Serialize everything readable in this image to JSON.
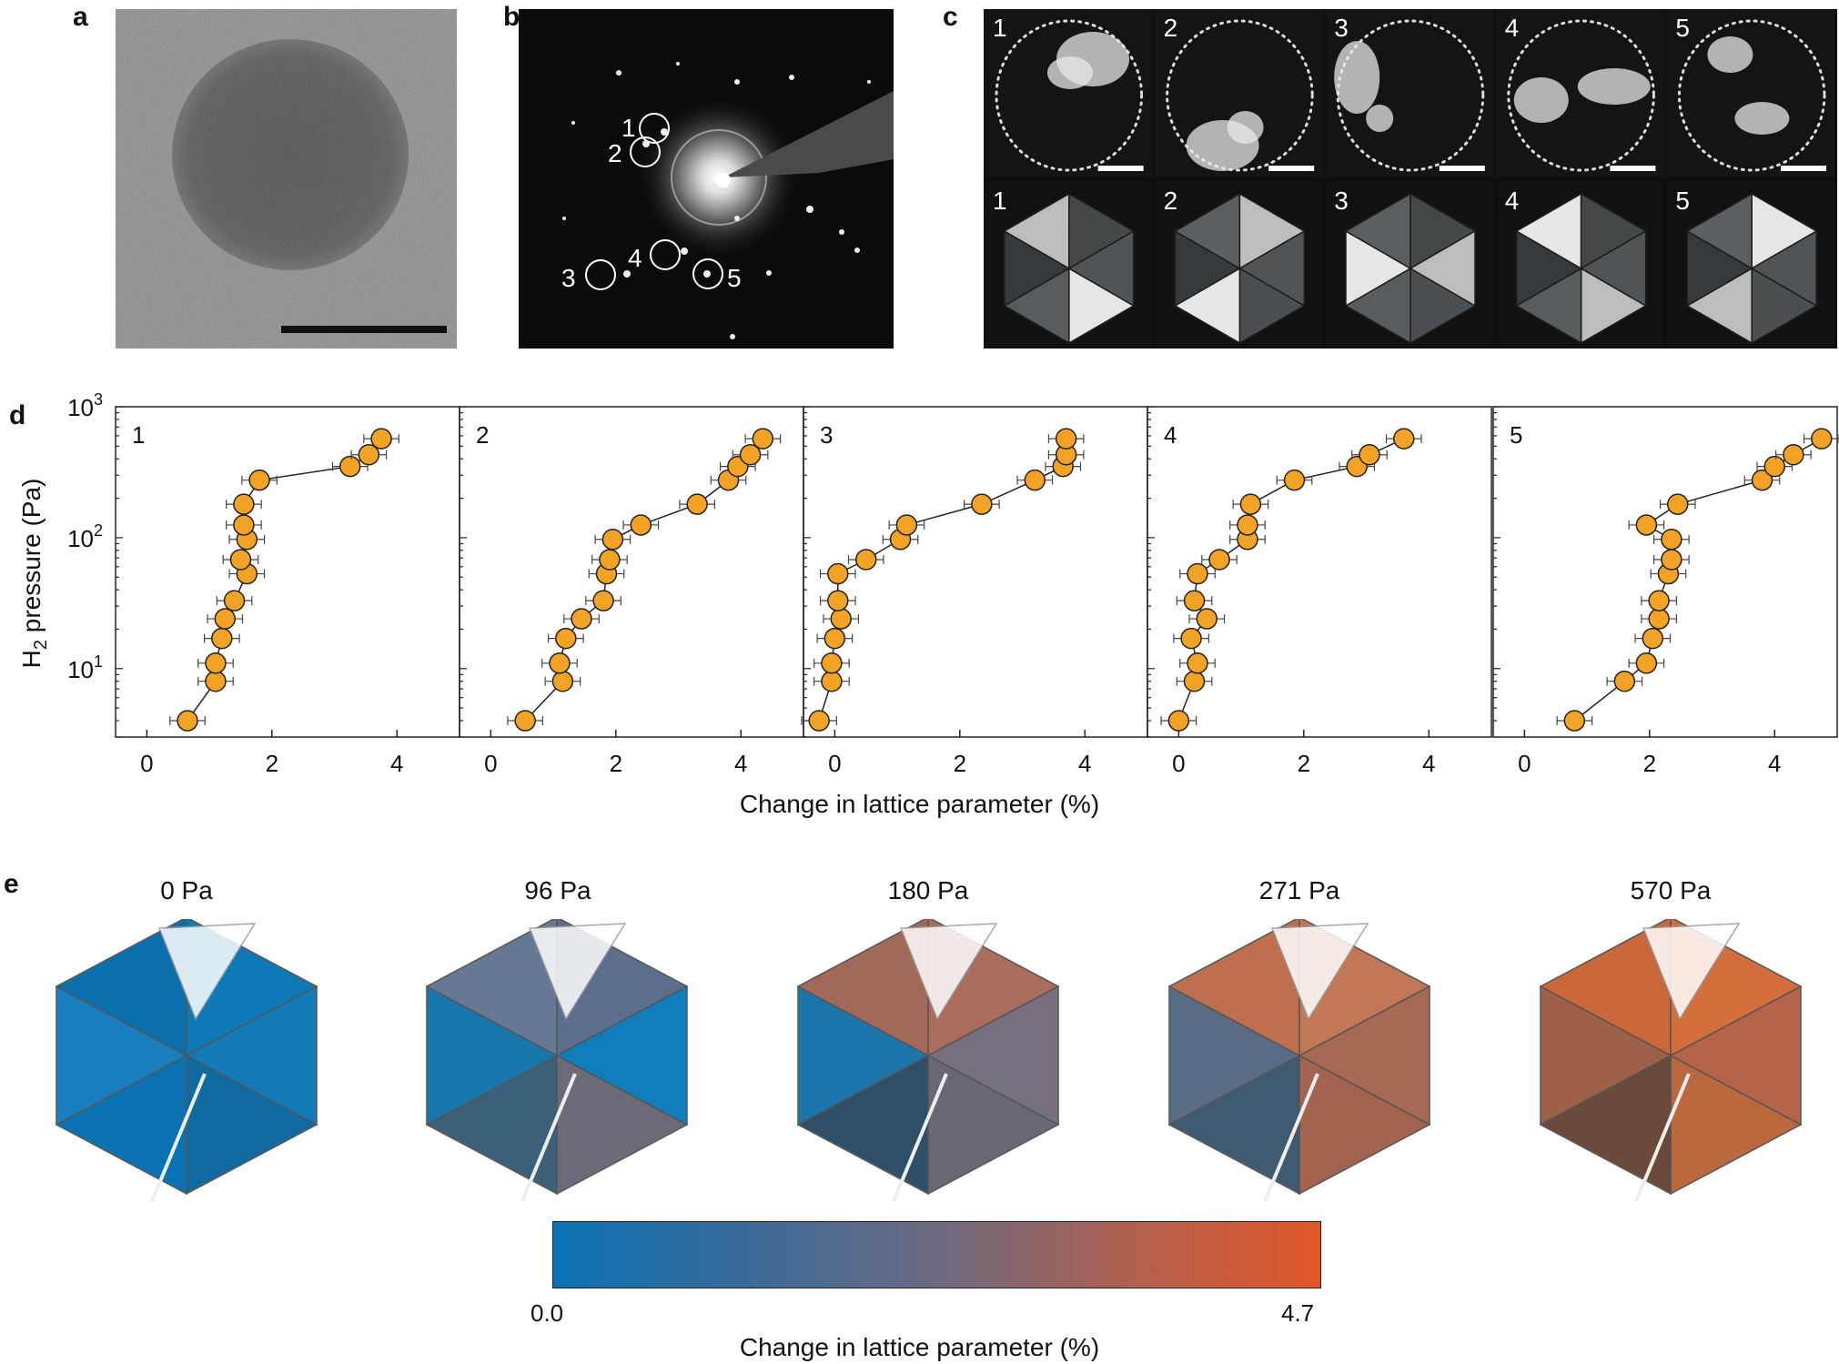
{
  "panels": {
    "a": "a",
    "b": "b",
    "c": "c",
    "d": "d",
    "e": "e"
  },
  "diffraction_spots": [
    "1",
    "2",
    "3",
    "4",
    "5"
  ],
  "dark_field_labels": [
    "1",
    "2",
    "3",
    "4",
    "5"
  ],
  "model_labels": [
    "1",
    "2",
    "3",
    "4",
    "5"
  ],
  "chart_data": [
    {
      "type": "scatter",
      "panel_label": "1",
      "xlabel": "Change in lattice parameter (%)",
      "ylabel": "H2 pressure (Pa)",
      "xlim": [
        -0.5,
        5
      ],
      "ylim": [
        3,
        1000
      ],
      "y_scale": "log",
      "x_ticks": [
        "0",
        "2",
        "4"
      ],
      "y_ticks": [
        "10¹",
        "10²",
        "10³"
      ],
      "points": [
        [
          0.65,
          4
        ],
        [
          1.1,
          8
        ],
        [
          1.1,
          11
        ],
        [
          1.2,
          17
        ],
        [
          1.25,
          24
        ],
        [
          1.4,
          33
        ],
        [
          1.6,
          53
        ],
        [
          1.5,
          68
        ],
        [
          1.6,
          97
        ],
        [
          1.55,
          125
        ],
        [
          1.55,
          180
        ],
        [
          1.8,
          275
        ],
        [
          3.25,
          350
        ],
        [
          3.55,
          430
        ],
        [
          3.75,
          570
        ]
      ]
    },
    {
      "type": "scatter",
      "panel_label": "2",
      "xlabel": "Change in lattice parameter (%)",
      "ylabel": "H2 pressure (Pa)",
      "xlim": [
        -0.5,
        5
      ],
      "ylim": [
        3,
        1000
      ],
      "y_scale": "log",
      "x_ticks": [
        "0",
        "2",
        "4"
      ],
      "points": [
        [
          0.55,
          4
        ],
        [
          1.15,
          8
        ],
        [
          1.1,
          11
        ],
        [
          1.2,
          17
        ],
        [
          1.45,
          24
        ],
        [
          1.8,
          33
        ],
        [
          1.85,
          53
        ],
        [
          1.9,
          68
        ],
        [
          1.95,
          97
        ],
        [
          2.4,
          125
        ],
        [
          3.3,
          180
        ],
        [
          3.8,
          275
        ],
        [
          3.95,
          350
        ],
        [
          4.15,
          430
        ],
        [
          4.35,
          570
        ]
      ]
    },
    {
      "type": "scatter",
      "panel_label": "3",
      "xlabel": "Change in lattice parameter (%)",
      "ylabel": "H2 pressure (Pa)",
      "xlim": [
        -0.5,
        5
      ],
      "ylim": [
        3,
        1000
      ],
      "y_scale": "log",
      "x_ticks": [
        "0",
        "2",
        "4"
      ],
      "points": [
        [
          -0.25,
          4
        ],
        [
          -0.05,
          8
        ],
        [
          -0.05,
          11
        ],
        [
          0.0,
          17
        ],
        [
          0.1,
          24
        ],
        [
          0.05,
          33
        ],
        [
          0.05,
          53
        ],
        [
          0.5,
          68
        ],
        [
          1.05,
          97
        ],
        [
          1.15,
          125
        ],
        [
          2.35,
          180
        ],
        [
          3.2,
          275
        ],
        [
          3.65,
          350
        ],
        [
          3.7,
          430
        ],
        [
          3.7,
          570
        ]
      ]
    },
    {
      "type": "scatter",
      "panel_label": "4",
      "xlabel": "Change in lattice parameter (%)",
      "ylabel": "H2 pressure (Pa)",
      "xlim": [
        -0.5,
        5
      ],
      "ylim": [
        3,
        1000
      ],
      "y_scale": "log",
      "x_ticks": [
        "0",
        "2",
        "4"
      ],
      "points": [
        [
          0.0,
          4
        ],
        [
          0.25,
          8
        ],
        [
          0.3,
          11
        ],
        [
          0.2,
          17
        ],
        [
          0.45,
          24
        ],
        [
          0.25,
          33
        ],
        [
          0.3,
          53
        ],
        [
          0.65,
          68
        ],
        [
          1.1,
          97
        ],
        [
          1.1,
          125
        ],
        [
          1.15,
          180
        ],
        [
          1.85,
          275
        ],
        [
          2.85,
          350
        ],
        [
          3.05,
          430
        ],
        [
          3.6,
          570
        ]
      ]
    },
    {
      "type": "scatter",
      "panel_label": "5",
      "xlabel": "Change in lattice parameter (%)",
      "ylabel": "H2 pressure (Pa)",
      "xlim": [
        -0.5,
        5
      ],
      "ylim": [
        3,
        1000
      ],
      "y_scale": "log",
      "x_ticks": [
        "0",
        "2",
        "4"
      ],
      "points": [
        [
          0.8,
          4
        ],
        [
          1.6,
          8
        ],
        [
          1.95,
          11
        ],
        [
          2.05,
          17
        ],
        [
          2.15,
          24
        ],
        [
          2.15,
          33
        ],
        [
          2.3,
          53
        ],
        [
          2.35,
          68
        ],
        [
          2.35,
          97
        ],
        [
          1.95,
          125
        ],
        [
          2.45,
          180
        ],
        [
          3.8,
          275
        ],
        [
          4.0,
          350
        ],
        [
          4.3,
          430
        ],
        [
          4.75,
          570
        ]
      ]
    }
  ],
  "axis": {
    "ylabel_main": "H",
    "ylabel_sub": "2",
    "ylabel_rest": " pressure (Pa)",
    "xlabel": "Change in lattice parameter (%)",
    "y_tick_base": "10",
    "y_tick_exps": [
      "1",
      "2",
      "3"
    ],
    "x_ticks": [
      "0",
      "2",
      "4"
    ]
  },
  "pressures": [
    "0 Pa",
    "96 Pa",
    "180 Pa",
    "271 Pa",
    "570 Pa"
  ],
  "colorbar": {
    "min": "0.0",
    "max": "4.7",
    "label": "Change in lattice parameter (%)",
    "colors": [
      "#0a72b4",
      "#e2562a"
    ]
  },
  "model_colors": [
    [
      "#1677b0",
      "#0f6aa0",
      "#0a72b4",
      "#1a7fbe",
      "#0b6fae",
      "#0e7ab8",
      "#127cb9"
    ],
    [
      "#5a6b85",
      "#6e6a77",
      "#3b5f7a",
      "#1478b0",
      "#667a95",
      "#5c6f8f",
      "#0d7fbf"
    ],
    [
      "#4d5660",
      "#6a6a75",
      "#2e4f6a",
      "#1a78b0",
      "#a76a5a",
      "#b06f5d",
      "#7a7080"
    ],
    [
      "#8a5a48",
      "#a46450",
      "#3d5a72",
      "#566e88",
      "#c0714f",
      "#c57a58",
      "#a86a55"
    ],
    [
      "#7b4b35",
      "#c06a40",
      "#6a4a3a",
      "#a0624a",
      "#d06a3a",
      "#d9703e",
      "#b8664a"
    ]
  ]
}
